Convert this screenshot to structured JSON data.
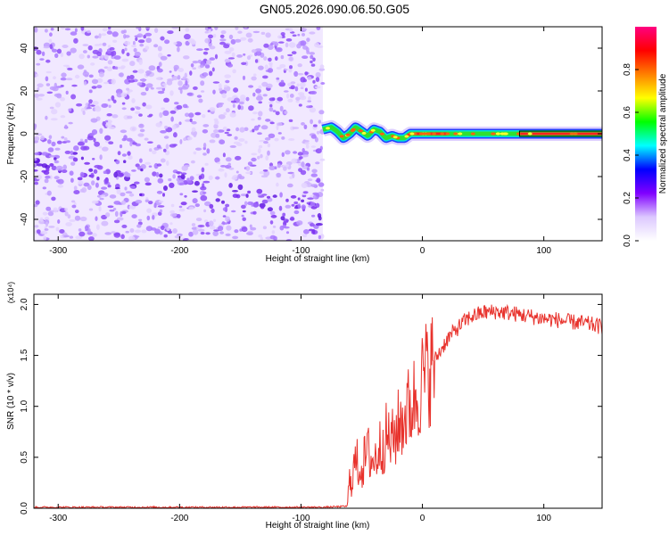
{
  "title": "GN05.2026.090.06.50.G05",
  "chart_data": [
    {
      "type": "heatmap",
      "xlabel": "Height of straight line (km)",
      "ylabel": "Frequency (Hz)",
      "xlim": [
        -320,
        148
      ],
      "ylim": [
        -50,
        50
      ],
      "x_ticks": [
        -300,
        -200,
        -100,
        0,
        100
      ],
      "x_tick_labels": [
        "-300",
        "-200",
        "-100",
        "0",
        "100"
      ],
      "y_ticks": [
        -40,
        -20,
        0,
        20,
        40
      ],
      "y_tick_labels": [
        "-40",
        "-20",
        "0",
        "20",
        "40"
      ],
      "colorbar": {
        "label": "Normalized spectral amplitude",
        "range": [
          0,
          1
        ],
        "ticks": [
          0.0,
          0.2,
          0.4,
          0.6,
          0.8
        ],
        "tick_labels": [
          "0.0",
          "0.2",
          "0.4",
          "0.6",
          "0.8"
        ],
        "colors": [
          "#ffffff",
          "#dcc8ff",
          "#8000ff",
          "#0000ff",
          "#00ffff",
          "#00ff00",
          "#ffff00",
          "#ff8000",
          "#ff0000",
          "#ff0080"
        ]
      },
      "noise_region": {
        "x_range": [
          -320,
          -82
        ],
        "level": "low (0.0-0.25)"
      },
      "signal_trace": {
        "x": [
          -82,
          -75,
          -70,
          -65,
          -60,
          -55,
          -50,
          -45,
          -40,
          -35,
          -30,
          -25,
          -20,
          -15,
          -10,
          0,
          20,
          40,
          60,
          80,
          100,
          148
        ],
        "y": [
          2,
          3,
          1,
          -2,
          0,
          3,
          1,
          -1,
          2,
          1,
          -2,
          -1,
          -2,
          -2,
          0,
          0,
          0,
          0,
          0,
          0,
          0,
          0
        ]
      }
    },
    {
      "type": "line",
      "xlabel": "Height of straight line (km)",
      "ylabel": "SNR (10 * v/v)",
      "y_multiplier": "(x10⁴)",
      "xlim": [
        -320,
        148
      ],
      "ylim": [
        0,
        2.1
      ],
      "x_ticks": [
        -300,
        -200,
        -100,
        0,
        100
      ],
      "x_tick_labels": [
        "-300",
        "-200",
        "-100",
        "0",
        "100"
      ],
      "y_ticks": [
        0.0,
        0.5,
        1.0,
        1.5,
        2.0
      ],
      "y_tick_labels": [
        "0.0",
        "0.5",
        "1.0",
        "1.5",
        "2.0"
      ],
      "color": "#e8322c",
      "series": [
        {
          "x": [
            -320,
            -300,
            -250,
            -200,
            -150,
            -100,
            -80,
            -62,
            -60,
            -55,
            -50,
            -45,
            -40,
            -35,
            -30,
            -25,
            -20,
            -15,
            -10,
            -5,
            0,
            5,
            10,
            15,
            20,
            25,
            30,
            35,
            40,
            50,
            60,
            70,
            80,
            90,
            100,
            110,
            120,
            130,
            140,
            148
          ],
          "values": [
            0.01,
            0.01,
            0.01,
            0.01,
            0.01,
            0.01,
            0.01,
            0.02,
            0.25,
            0.45,
            0.4,
            0.55,
            0.45,
            0.6,
            0.7,
            0.65,
            0.8,
            0.9,
            1.0,
            1.1,
            1.25,
            1.35,
            1.45,
            1.55,
            1.65,
            1.72,
            1.78,
            1.84,
            1.88,
            1.92,
            1.93,
            1.92,
            1.9,
            1.88,
            1.86,
            1.85,
            1.83,
            1.82,
            1.8,
            1.78
          ]
        }
      ]
    }
  ]
}
